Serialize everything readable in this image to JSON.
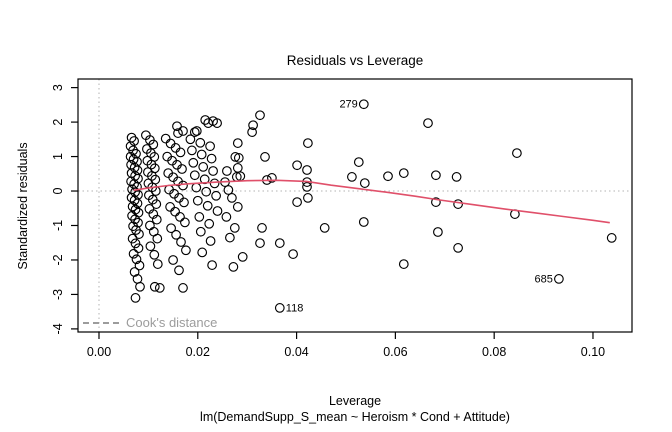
{
  "chart_data": {
    "type": "scatter",
    "title": "Residuals vs Leverage",
    "xlabel": "Leverage",
    "sublabel": "lm(DemandSupp_S_mean ~ Heroism * Cond + Attitude)",
    "ylabel": "Standardized residuals",
    "xlim": [
      -0.00425,
      0.1079
    ],
    "ylim": [
      -4.09,
      3.25
    ],
    "x_ticks": [
      0.0,
      0.02,
      0.04,
      0.06,
      0.08,
      0.1
    ],
    "x_tick_labels": [
      "0.00",
      "0.02",
      "0.04",
      "0.06",
      "0.08",
      "0.10"
    ],
    "y_ticks": [
      -4,
      -3,
      -2,
      -1,
      0,
      1,
      2,
      3
    ],
    "y_tick_labels": [
      "-4",
      "-3",
      "-2",
      "-1",
      "0",
      "1",
      "2",
      "3"
    ],
    "grid": false,
    "zero_line_y": 0,
    "zero_line_x": 0,
    "legend": {
      "label": "Cook's distance",
      "position": "bottom-left"
    },
    "colors": {
      "points": "#000000",
      "smooth_line": "#e0506a",
      "dotted_reference": "#b3b3b3",
      "legend_text": "#9c9c9c",
      "axis": "#000000"
    },
    "labeled_points": [
      {
        "label": "279",
        "x": 0.0536,
        "y": 2.52,
        "side": "left"
      },
      {
        "label": "118",
        "x": 0.0366,
        "y": -3.39,
        "side": "right"
      },
      {
        "label": "685",
        "x": 0.0931,
        "y": -2.55,
        "side": "left"
      }
    ],
    "smooth_line": [
      [
        0.007,
        0.02
      ],
      [
        0.01,
        0.09
      ],
      [
        0.014,
        0.16
      ],
      [
        0.018,
        0.21
      ],
      [
        0.024,
        0.26
      ],
      [
        0.03,
        0.3
      ],
      [
        0.036,
        0.31
      ],
      [
        0.042,
        0.28
      ],
      [
        0.047,
        0.17
      ],
      [
        0.052,
        0.08
      ],
      [
        0.058,
        -0.03
      ],
      [
        0.064,
        -0.15
      ],
      [
        0.069,
        -0.26
      ],
      [
        0.076,
        -0.4
      ],
      [
        0.082,
        -0.52
      ],
      [
        0.088,
        -0.63
      ],
      [
        0.094,
        -0.74
      ],
      [
        0.1,
        -0.85
      ],
      [
        0.1034,
        -0.92
      ]
    ],
    "points": [
      [
        0.0066,
        1.55
      ],
      [
        0.0071,
        1.45
      ],
      [
        0.0064,
        1.3
      ],
      [
        0.0069,
        1.18
      ],
      [
        0.0075,
        1.08
      ],
      [
        0.0064,
        1.0
      ],
      [
        0.007,
        0.92
      ],
      [
        0.0077,
        0.85
      ],
      [
        0.0065,
        0.76
      ],
      [
        0.0072,
        0.68
      ],
      [
        0.0078,
        0.6
      ],
      [
        0.0066,
        0.52
      ],
      [
        0.0073,
        0.44
      ],
      [
        0.0079,
        0.36
      ],
      [
        0.0065,
        0.28
      ],
      [
        0.0071,
        0.2
      ],
      [
        0.0077,
        0.12
      ],
      [
        0.0067,
        0.05
      ],
      [
        0.0073,
        -0.03
      ],
      [
        0.0079,
        -0.11
      ],
      [
        0.0066,
        -0.19
      ],
      [
        0.0072,
        -0.27
      ],
      [
        0.0078,
        -0.36
      ],
      [
        0.0068,
        -0.45
      ],
      [
        0.0074,
        -0.54
      ],
      [
        0.008,
        -0.63
      ],
      [
        0.0067,
        -0.72
      ],
      [
        0.0073,
        -0.82
      ],
      [
        0.0079,
        -0.92
      ],
      [
        0.0069,
        -1.02
      ],
      [
        0.0075,
        -1.13
      ],
      [
        0.0081,
        -1.25
      ],
      [
        0.0068,
        -1.38
      ],
      [
        0.0074,
        -1.52
      ],
      [
        0.008,
        -1.66
      ],
      [
        0.007,
        -1.82
      ],
      [
        0.0076,
        -1.98
      ],
      [
        0.0082,
        -2.16
      ],
      [
        0.0072,
        -2.35
      ],
      [
        0.0078,
        -2.55
      ],
      [
        0.0083,
        -2.78
      ],
      [
        0.0074,
        -3.1
      ],
      [
        0.0095,
        1.62
      ],
      [
        0.0103,
        1.48
      ],
      [
        0.011,
        1.35
      ],
      [
        0.0097,
        1.22
      ],
      [
        0.0105,
        1.1
      ],
      [
        0.0112,
        0.99
      ],
      [
        0.0098,
        0.88
      ],
      [
        0.0106,
        0.77
      ],
      [
        0.0113,
        0.66
      ],
      [
        0.0099,
        0.55
      ],
      [
        0.0107,
        0.44
      ],
      [
        0.0114,
        0.33
      ],
      [
        0.01,
        0.22
      ],
      [
        0.0108,
        0.11
      ],
      [
        0.0115,
        0.0
      ],
      [
        0.0101,
        -0.12
      ],
      [
        0.0109,
        -0.25
      ],
      [
        0.0116,
        -0.38
      ],
      [
        0.0102,
        -0.52
      ],
      [
        0.011,
        -0.67
      ],
      [
        0.0117,
        -0.83
      ],
      [
        0.0103,
        -1.0
      ],
      [
        0.0111,
        -1.18
      ],
      [
        0.0118,
        -1.38
      ],
      [
        0.0104,
        -1.6
      ],
      [
        0.0112,
        -1.85
      ],
      [
        0.0119,
        -2.12
      ],
      [
        0.0113,
        -2.78
      ],
      [
        0.0123,
        -2.81
      ],
      [
        0.0158,
        1.88
      ],
      [
        0.017,
        1.74
      ],
      [
        0.016,
        1.68
      ],
      [
        0.0135,
        1.52
      ],
      [
        0.0145,
        1.38
      ],
      [
        0.0155,
        1.25
      ],
      [
        0.0165,
        1.12
      ],
      [
        0.0138,
        1.0
      ],
      [
        0.0148,
        0.88
      ],
      [
        0.0158,
        0.76
      ],
      [
        0.0168,
        0.64
      ],
      [
        0.014,
        0.52
      ],
      [
        0.015,
        0.4
      ],
      [
        0.016,
        0.28
      ],
      [
        0.017,
        0.16
      ],
      [
        0.0142,
        0.04
      ],
      [
        0.0152,
        -0.08
      ],
      [
        0.0162,
        -0.2
      ],
      [
        0.0172,
        -0.33
      ],
      [
        0.0144,
        -0.46
      ],
      [
        0.0154,
        -0.6
      ],
      [
        0.0164,
        -0.75
      ],
      [
        0.0174,
        -0.91
      ],
      [
        0.0146,
        -1.08
      ],
      [
        0.0156,
        -1.27
      ],
      [
        0.0166,
        -1.48
      ],
      [
        0.0176,
        -1.72
      ],
      [
        0.015,
        -2.0
      ],
      [
        0.0162,
        -2.3
      ],
      [
        0.017,
        -2.81
      ],
      [
        0.0215,
        2.06
      ],
      [
        0.0231,
        2.03
      ],
      [
        0.0221,
        1.97
      ],
      [
        0.0239,
        1.97
      ],
      [
        0.0198,
        1.74
      ],
      [
        0.0194,
        1.71
      ],
      [
        0.0185,
        1.5
      ],
      [
        0.0205,
        1.4
      ],
      [
        0.0225,
        1.3
      ],
      [
        0.0188,
        1.18
      ],
      [
        0.0208,
        1.06
      ],
      [
        0.0228,
        0.94
      ],
      [
        0.0191,
        0.82
      ],
      [
        0.0211,
        0.7
      ],
      [
        0.0231,
        0.58
      ],
      [
        0.0194,
        0.46
      ],
      [
        0.0214,
        0.34
      ],
      [
        0.0234,
        0.22
      ],
      [
        0.0197,
        0.1
      ],
      [
        0.0217,
        -0.02
      ],
      [
        0.0237,
        -0.14
      ],
      [
        0.02,
        -0.28
      ],
      [
        0.022,
        -0.43
      ],
      [
        0.024,
        -0.58
      ],
      [
        0.0203,
        -0.75
      ],
      [
        0.0223,
        -0.95
      ],
      [
        0.0206,
        -1.18
      ],
      [
        0.0226,
        -1.45
      ],
      [
        0.0209,
        -1.78
      ],
      [
        0.0229,
        -2.15
      ],
      [
        0.0312,
        1.91
      ],
      [
        0.031,
        1.71
      ],
      [
        0.0281,
        1.39
      ],
      [
        0.0276,
        0.99
      ],
      [
        0.0283,
        0.96
      ],
      [
        0.0281,
        0.67
      ],
      [
        0.0259,
        0.58
      ],
      [
        0.0286,
        0.43
      ],
      [
        0.0279,
        0.41
      ],
      [
        0.0255,
        0.26
      ],
      [
        0.0262,
        0.03
      ],
      [
        0.0269,
        -0.2
      ],
      [
        0.0281,
        -0.46
      ],
      [
        0.0258,
        -0.75
      ],
      [
        0.0275,
        -1.07
      ],
      [
        0.0265,
        -1.35
      ],
      [
        0.0291,
        -1.91
      ],
      [
        0.0272,
        -2.2
      ],
      [
        0.0326,
        2.2
      ],
      [
        0.0336,
        0.99
      ],
      [
        0.033,
        -1.07
      ],
      [
        0.0326,
        -1.51
      ],
      [
        0.0366,
        -1.51
      ],
      [
        0.035,
        0.38
      ],
      [
        0.034,
        0.32
      ],
      [
        0.0401,
        0.75
      ],
      [
        0.0421,
        0.61
      ],
      [
        0.0421,
        0.26
      ],
      [
        0.0421,
        0.12
      ],
      [
        0.0401,
        -0.32
      ],
      [
        0.0423,
        -0.2
      ],
      [
        0.0457,
        -1.07
      ],
      [
        0.0393,
        -1.83
      ],
      [
        0.0423,
        1.39
      ],
      [
        0.0526,
        0.84
      ],
      [
        0.0512,
        0.41
      ],
      [
        0.0538,
        0.23
      ],
      [
        0.0585,
        0.43
      ],
      [
        0.0617,
        0.52
      ],
      [
        0.0682,
        0.46
      ],
      [
        0.0724,
        0.41
      ],
      [
        0.0682,
        -0.32
      ],
      [
        0.0727,
        -0.38
      ],
      [
        0.0666,
        1.97
      ],
      [
        0.0846,
        1.1
      ],
      [
        0.0842,
        -0.67
      ],
      [
        0.0536,
        -0.9
      ],
      [
        0.0686,
        -1.19
      ],
      [
        0.0727,
        -1.65
      ],
      [
        0.0617,
        -2.12
      ],
      [
        0.1038,
        -1.36
      ]
    ]
  }
}
